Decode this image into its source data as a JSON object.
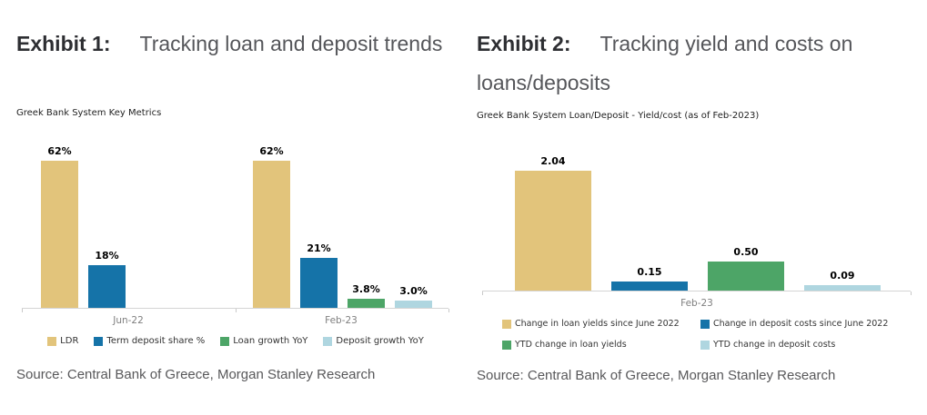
{
  "panels": [
    {
      "exhibit_label": "Exhibit 1:",
      "title": "Tracking loan and deposit trends",
      "subtitle": "Greek Bank System Key Metrics",
      "source": "Source: Central Bank of Greece, Morgan Stanley Research"
    },
    {
      "exhibit_label": "Exhibit 2:",
      "title": "Tracking yield and costs on loans/deposits",
      "subtitle": "Greek Bank System Loan/Deposit - Yield/cost (as of Feb-2023)",
      "source": "Source: Central Bank of Greece, Morgan Stanley Research"
    }
  ],
  "colors": {
    "gold": "#E2C47B",
    "blue": "#1573A8",
    "green": "#4DA567",
    "light_blue": "#AFD6E0",
    "axis": "#D5D5D5",
    "title_bold": "#2D2E32",
    "title_regular": "#55565A",
    "data_label": "#000000",
    "x_label": "#7F7F7F",
    "source_text": "#58585A"
  },
  "chart_data": [
    {
      "type": "bar",
      "title": "Greek Bank System Key Metrics",
      "categories": [
        "Jun-22",
        "Feb-23"
      ],
      "series": [
        {
          "name": "LDR",
          "color": "#E2C47B",
          "values": [
            62,
            62
          ],
          "labels": [
            "62%",
            "62%"
          ]
        },
        {
          "name": "Term deposit share %",
          "color": "#1573A8",
          "values": [
            18,
            21
          ],
          "labels": [
            "18%",
            "21%"
          ]
        },
        {
          "name": "Loan growth YoY",
          "color": "#4DA567",
          "values": [
            null,
            3.8
          ],
          "labels": [
            null,
            "3.8%"
          ]
        },
        {
          "name": "Deposit growth YoY",
          "color": "#AFD6E0",
          "values": [
            null,
            3.0
          ],
          "labels": [
            null,
            "3.0%"
          ]
        }
      ],
      "ylim": [
        0,
        65
      ],
      "grid": false,
      "legend_position": "bottom"
    },
    {
      "type": "bar",
      "title": "Greek Bank System Loan/Deposit - Yield/cost (as of Feb-2023)",
      "categories": [
        "Feb-23"
      ],
      "series": [
        {
          "name": "Change in loan yields since June 2022",
          "color": "#E2C47B",
          "values": [
            2.04
          ],
          "labels": [
            "2.04"
          ]
        },
        {
          "name": "Change in deposit costs since June 2022",
          "color": "#1573A8",
          "values": [
            0.15
          ],
          "labels": [
            "0.15"
          ]
        },
        {
          "name": "YTD change in loan yields",
          "color": "#4DA567",
          "values": [
            0.5
          ],
          "labels": [
            "0.50"
          ]
        },
        {
          "name": "YTD change in deposit costs",
          "color": "#AFD6E0",
          "values": [
            0.09
          ],
          "labels": [
            "0.09"
          ]
        }
      ],
      "ylim": [
        0,
        2.2
      ],
      "grid": false,
      "legend_position": "bottom"
    }
  ]
}
